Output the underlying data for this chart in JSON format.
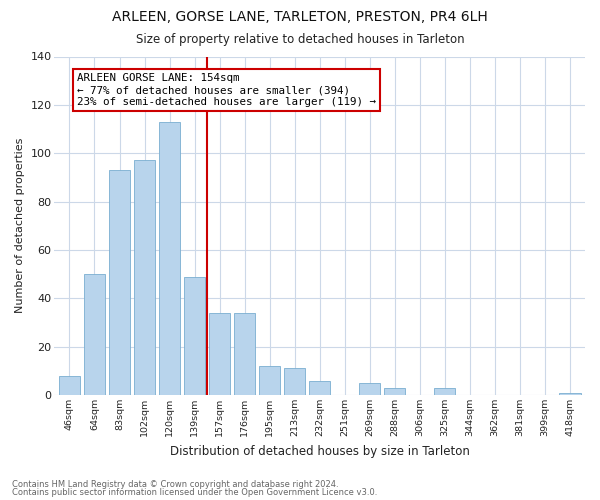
{
  "title": "ARLEEN, GORSE LANE, TARLETON, PRESTON, PR4 6LH",
  "subtitle": "Size of property relative to detached houses in Tarleton",
  "xlabel": "Distribution of detached houses by size in Tarleton",
  "ylabel": "Number of detached properties",
  "bar_labels": [
    "46sqm",
    "64sqm",
    "83sqm",
    "102sqm",
    "120sqm",
    "139sqm",
    "157sqm",
    "176sqm",
    "195sqm",
    "213sqm",
    "232sqm",
    "251sqm",
    "269sqm",
    "288sqm",
    "306sqm",
    "325sqm",
    "344sqm",
    "362sqm",
    "381sqm",
    "399sqm",
    "418sqm"
  ],
  "bar_values": [
    8,
    50,
    93,
    97,
    113,
    49,
    34,
    34,
    12,
    11,
    6,
    0,
    5,
    3,
    0,
    3,
    0,
    0,
    0,
    0,
    1
  ],
  "bar_color": "#b8d4ec",
  "bar_edge_color": "#7aaed0",
  "vline_x": 5.5,
  "vline_color": "#cc0000",
  "annotation_title": "ARLEEN GORSE LANE: 154sqm",
  "annotation_line1": "← 77% of detached houses are smaller (394)",
  "annotation_line2": "23% of semi-detached houses are larger (119) →",
  "annotation_box_color": "#ffffff",
  "annotation_box_edge": "#cc0000",
  "ylim": [
    0,
    140
  ],
  "yticks": [
    0,
    20,
    40,
    60,
    80,
    100,
    120,
    140
  ],
  "footnote1": "Contains HM Land Registry data © Crown copyright and database right 2024.",
  "footnote2": "Contains public sector information licensed under the Open Government Licence v3.0.",
  "background_color": "#ffffff",
  "grid_color": "#ccd8e8"
}
